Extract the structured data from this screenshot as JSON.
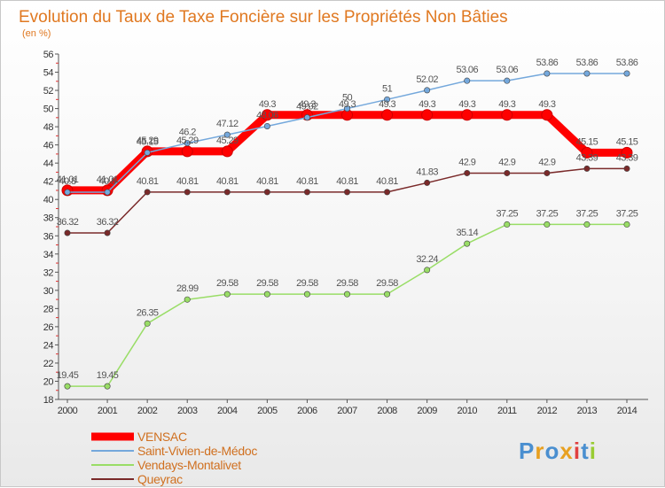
{
  "chart_data": {
    "type": "line",
    "title": "Evolution du Taux de Taxe Foncière sur les Propriétés Non Bâties",
    "subtitle": "(en %)",
    "x": [
      "2000",
      "2001",
      "2002",
      "2003",
      "2004",
      "2005",
      "2006",
      "2007",
      "2008",
      "2009",
      "2010",
      "2011",
      "2012",
      "2013",
      "2014"
    ],
    "ylim": [
      18,
      56
    ],
    "yticks": [
      18,
      20,
      22,
      24,
      26,
      28,
      30,
      32,
      34,
      36,
      38,
      40,
      42,
      44,
      46,
      48,
      50,
      52,
      54,
      56
    ],
    "grid": false,
    "legend_position": "bottom-left",
    "series": [
      {
        "name": "VENSAC",
        "color": "#ff0000",
        "values": [
          41.01,
          41.01,
          45.29,
          45.29,
          45.29,
          49.3,
          49.3,
          49.3,
          49.3,
          49.3,
          49.3,
          49.3,
          49.3,
          45.15,
          45.15
        ],
        "labels": [
          "41.01",
          "41.01",
          "45.29",
          "45.29",
          "45.29",
          "49.3",
          "49.3",
          "49.3",
          "49.3",
          "49.3",
          "49.3",
          "49.3",
          "49.3",
          "45.15",
          "45.15"
        ]
      },
      {
        "name": "Saint-Vivien-de-Médoc",
        "color": "#74a8dc",
        "values": [
          40.8,
          40.8,
          45.15,
          46.2,
          47.12,
          48.06,
          49.02,
          50.0,
          51.0,
          52.02,
          53.06,
          53.06,
          53.86,
          53.86,
          53.86
        ],
        "labels": [
          "40.8",
          "40.8",
          "45.15",
          "46.2",
          "47.12",
          "48.06",
          "49.02",
          "50",
          "51",
          "52.02",
          "53.06",
          "53.06",
          "53.86",
          "53.86",
          "53.86"
        ]
      },
      {
        "name": "Vendays-Montalivet",
        "color": "#99dd66",
        "values": [
          19.45,
          19.45,
          26.35,
          28.99,
          29.58,
          29.58,
          29.58,
          29.58,
          29.58,
          32.24,
          35.14,
          37.25,
          37.25,
          37.25,
          37.25
        ],
        "labels": [
          "19.45",
          "19.45",
          "26.35",
          "28.99",
          "29.58",
          "29.58",
          "29.58",
          "29.58",
          "29.58",
          "32.24",
          "35.14",
          "37.25",
          "37.25",
          "37.25",
          "37.25"
        ]
      },
      {
        "name": "Queyrac",
        "color": "#7a2a2a",
        "values": [
          36.32,
          36.32,
          40.81,
          40.81,
          40.81,
          40.81,
          40.81,
          40.81,
          40.81,
          41.83,
          42.9,
          42.9,
          42.9,
          43.39,
          43.39
        ],
        "labels": [
          "36.32",
          "36.32",
          "40.81",
          "40.81",
          "40.81",
          "40.81",
          "40.81",
          "40.81",
          "40.81",
          "41.83",
          "42.9",
          "42.9",
          "42.9",
          "43.39",
          "43.39"
        ]
      }
    ]
  },
  "logo": {
    "text": "Proxiti",
    "colors": [
      "#4a8fd0",
      "#e8a020",
      "#4a8fd0",
      "#e8a020",
      "#e04040",
      "#4a8fd0",
      "#99cc33"
    ]
  }
}
